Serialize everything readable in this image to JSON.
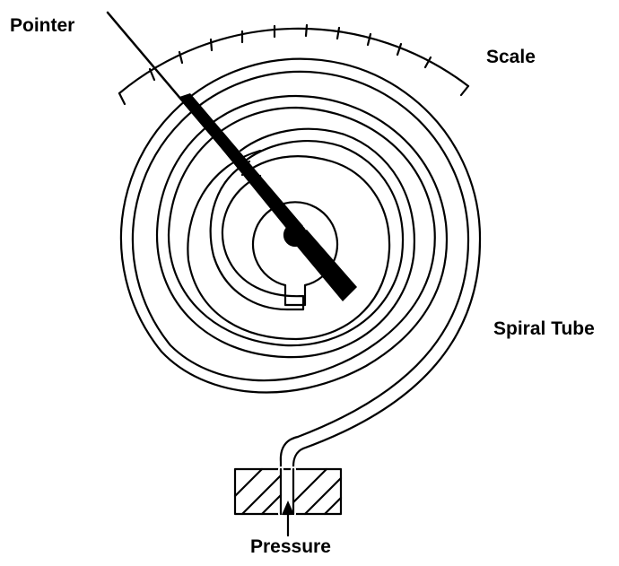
{
  "labels": {
    "pointer": "Pointer",
    "scale": "Scale",
    "spiral_tube": "Spiral Tube",
    "pressure": "Pressure"
  },
  "colors": {
    "ink": "#000000",
    "background": "#ffffff"
  }
}
